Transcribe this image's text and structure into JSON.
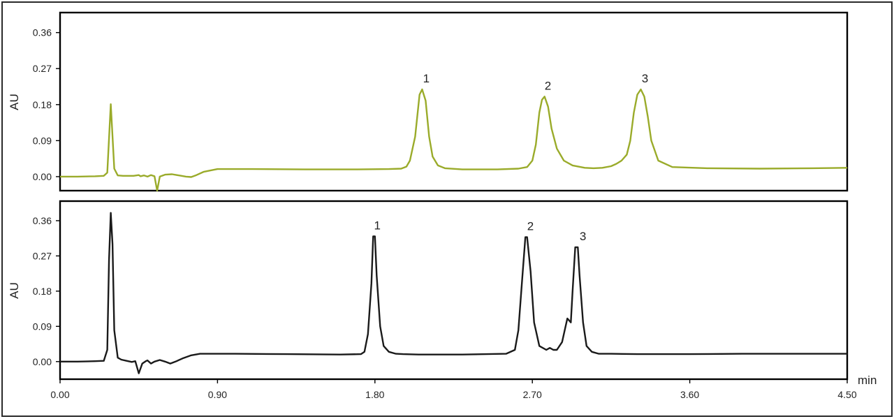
{
  "chart_data": [
    {
      "type": "line",
      "panel": "top",
      "ylabel": "AU",
      "ylim": [
        -0.035,
        0.41
      ],
      "xlim": [
        0.0,
        4.5
      ],
      "y_ticks": [
        "0.00",
        "0.09",
        "0.18",
        "0.27",
        "0.36"
      ],
      "y_tick_values": [
        0.0,
        0.09,
        0.18,
        0.27,
        0.36
      ],
      "grid": false,
      "color": "#9aab2a",
      "series": [
        {
          "x": [
            0.0,
            0.1,
            0.2,
            0.25,
            0.27,
            0.29,
            0.31,
            0.33,
            0.36,
            0.42,
            0.45,
            0.46,
            0.48,
            0.5,
            0.52,
            0.54,
            0.555,
            0.57,
            0.6,
            0.64,
            0.68,
            0.72,
            0.75,
            0.78,
            0.82,
            0.9,
            1.1,
            1.4,
            1.7,
            1.88,
            1.95,
            1.98,
            2.0,
            2.03,
            2.055,
            2.07,
            2.09,
            2.11,
            2.13,
            2.16,
            2.2,
            2.3,
            2.5,
            2.62,
            2.67,
            2.7,
            2.72,
            2.74,
            2.755,
            2.77,
            2.79,
            2.81,
            2.84,
            2.88,
            2.93,
            3.0,
            3.05,
            3.1,
            3.15,
            3.18,
            3.21,
            3.24,
            3.26,
            3.28,
            3.3,
            3.32,
            3.34,
            3.36,
            3.38,
            3.42,
            3.5,
            3.7,
            4.0,
            4.3,
            4.5
          ],
          "y": [
            0.0,
            0.0,
            0.001,
            0.002,
            0.01,
            0.181,
            0.02,
            0.003,
            0.002,
            0.002,
            0.004,
            0.001,
            0.003,
            0.0,
            0.004,
            0.001,
            -0.035,
            0.0,
            0.005,
            0.006,
            0.003,
            0.0,
            -0.001,
            0.004,
            0.012,
            0.019,
            0.019,
            0.018,
            0.018,
            0.019,
            0.02,
            0.025,
            0.04,
            0.1,
            0.205,
            0.218,
            0.19,
            0.1,
            0.05,
            0.028,
            0.021,
            0.018,
            0.018,
            0.02,
            0.024,
            0.04,
            0.08,
            0.16,
            0.192,
            0.2,
            0.175,
            0.12,
            0.07,
            0.04,
            0.028,
            0.022,
            0.021,
            0.022,
            0.026,
            0.032,
            0.04,
            0.055,
            0.09,
            0.16,
            0.205,
            0.218,
            0.2,
            0.15,
            0.09,
            0.04,
            0.024,
            0.021,
            0.02,
            0.021,
            0.022
          ]
        }
      ],
      "peak_labels": [
        {
          "text": "1",
          "x": 2.07,
          "y": 0.218
        },
        {
          "text": "2",
          "x": 2.765,
          "y": 0.2
        },
        {
          "text": "3",
          "x": 3.32,
          "y": 0.218
        }
      ]
    },
    {
      "type": "line",
      "panel": "bottom",
      "xlabel": "min",
      "ylabel": "AU",
      "ylim": [
        -0.045,
        0.41
      ],
      "xlim": [
        0.0,
        4.5
      ],
      "y_ticks": [
        "0.00",
        "0.09",
        "0.18",
        "0.27",
        "0.36"
      ],
      "y_tick_values": [
        0.0,
        0.09,
        0.18,
        0.27,
        0.36
      ],
      "x_ticks": [
        "0.00",
        "0.90",
        "1.80",
        "2.70",
        "3.60",
        "4.50"
      ],
      "x_tick_values": [
        0.0,
        0.9,
        1.8,
        2.7,
        3.6,
        4.5
      ],
      "grid": false,
      "color": "#1a1a1a",
      "series": [
        {
          "x": [
            0.0,
            0.1,
            0.2,
            0.25,
            0.27,
            0.28,
            0.29,
            0.3,
            0.31,
            0.33,
            0.35,
            0.38,
            0.41,
            0.43,
            0.45,
            0.47,
            0.49,
            0.5,
            0.52,
            0.54,
            0.57,
            0.6,
            0.63,
            0.66,
            0.7,
            0.75,
            0.8,
            1.0,
            1.3,
            1.6,
            1.72,
            1.74,
            1.76,
            1.78,
            1.79,
            1.8,
            1.81,
            1.83,
            1.85,
            1.88,
            1.92,
            1.96,
            2.05,
            2.3,
            2.55,
            2.6,
            2.62,
            2.64,
            2.66,
            2.67,
            2.69,
            2.71,
            2.74,
            2.78,
            2.8,
            2.82,
            2.84,
            2.87,
            2.89,
            2.9,
            2.92,
            2.93,
            2.945,
            2.96,
            2.97,
            2.99,
            3.01,
            3.04,
            3.08,
            3.15,
            3.3,
            3.6,
            3.9,
            4.2,
            4.5
          ],
          "y": [
            0.0,
            0.0,
            0.001,
            0.002,
            0.03,
            0.26,
            0.38,
            0.3,
            0.08,
            0.01,
            0.005,
            0.002,
            -0.001,
            0.001,
            -0.03,
            -0.005,
            0.001,
            0.003,
            -0.005,
            0.0,
            0.004,
            0.0,
            -0.005,
            0.0,
            0.008,
            0.016,
            0.02,
            0.02,
            0.019,
            0.018,
            0.019,
            0.025,
            0.07,
            0.2,
            0.32,
            0.32,
            0.22,
            0.09,
            0.04,
            0.025,
            0.02,
            0.019,
            0.018,
            0.018,
            0.02,
            0.03,
            0.08,
            0.2,
            0.318,
            0.318,
            0.23,
            0.1,
            0.04,
            0.03,
            0.035,
            0.03,
            0.03,
            0.05,
            0.09,
            0.11,
            0.1,
            0.18,
            0.292,
            0.292,
            0.22,
            0.1,
            0.04,
            0.025,
            0.02,
            0.02,
            0.019,
            0.019,
            0.02,
            0.02,
            0.02
          ]
        }
      ],
      "peak_labels": [
        {
          "text": "1",
          "x": 1.79,
          "y": 0.32
        },
        {
          "text": "2",
          "x": 2.665,
          "y": 0.318
        },
        {
          "text": "3",
          "x": 2.965,
          "y": 0.292
        }
      ]
    }
  ]
}
